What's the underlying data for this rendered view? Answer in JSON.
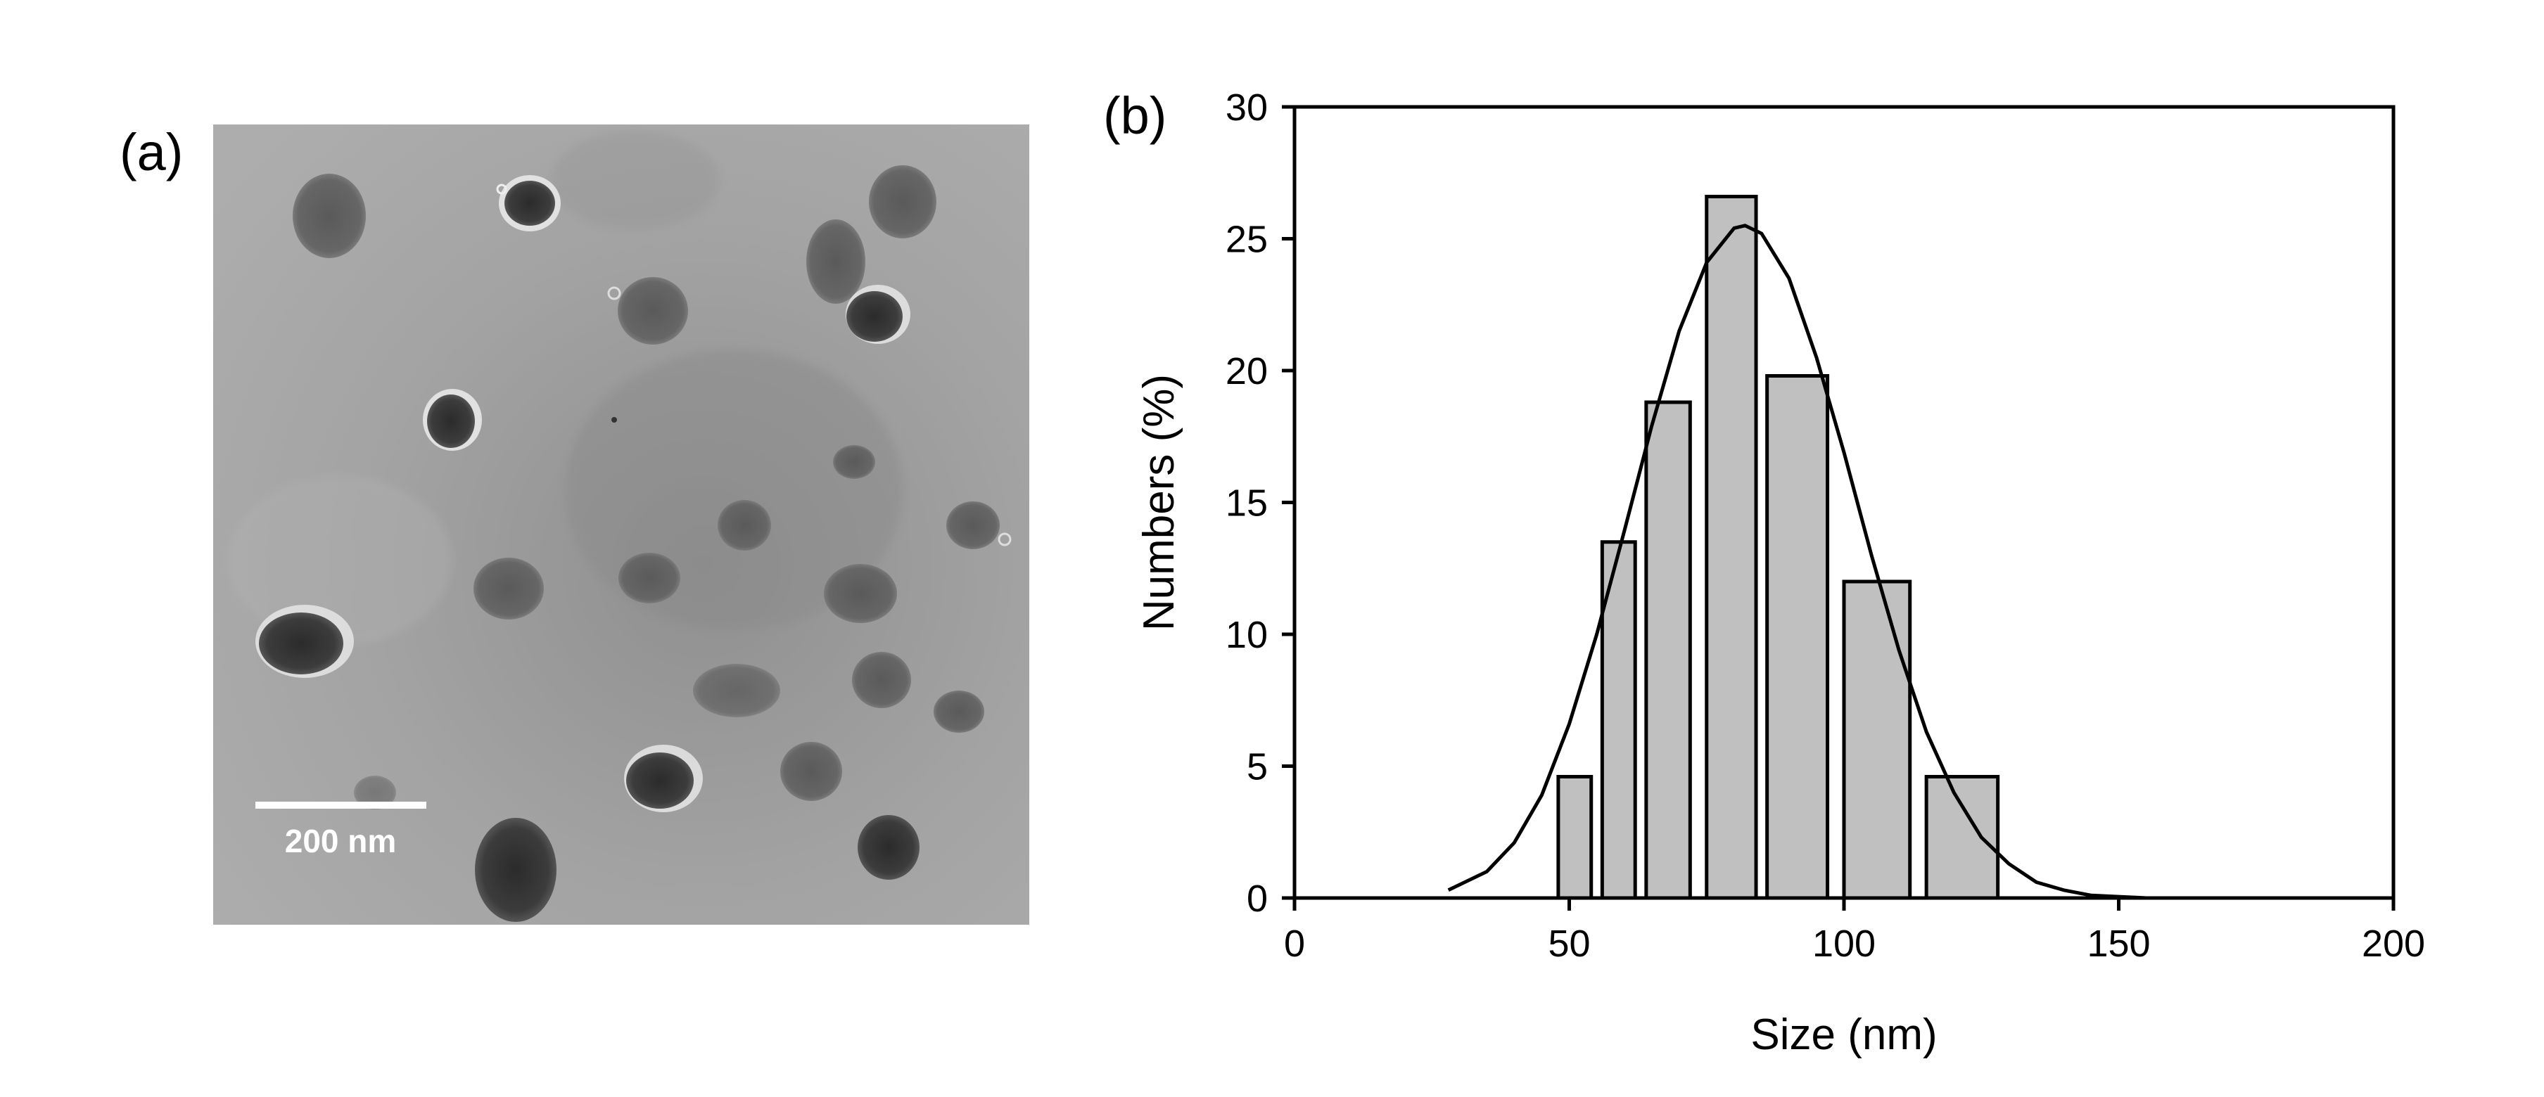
{
  "panels": {
    "a_label": "(a)",
    "b_label": "(b)"
  },
  "micrograph": {
    "scale_bar_label": "200 nm"
  },
  "chart_data": {
    "type": "bar",
    "xlabel": "Size (nm)",
    "ylabel": "Numbers (%)",
    "xlim": [
      0,
      200
    ],
    "ylim": [
      0,
      30
    ],
    "xticks": [
      0,
      50,
      100,
      150,
      200
    ],
    "yticks": [
      0,
      5,
      10,
      15,
      20,
      25,
      30
    ],
    "grid": false,
    "legend": "none",
    "bar_color": "#c0c0c0",
    "bars": [
      {
        "start": 48,
        "end": 54,
        "value": 4.6
      },
      {
        "start": 56,
        "end": 62,
        "value": 13.5
      },
      {
        "start": 64,
        "end": 72,
        "value": 18.8
      },
      {
        "start": 75,
        "end": 84,
        "value": 26.6
      },
      {
        "start": 86,
        "end": 97,
        "value": 19.8
      },
      {
        "start": 100,
        "end": 112,
        "value": 12.0
      },
      {
        "start": 115,
        "end": 128,
        "value": 4.6
      }
    ],
    "fit": {
      "type": "gaussian",
      "x": [
        28,
        35,
        40,
        45,
        50,
        55,
        60,
        65,
        70,
        75,
        80,
        82,
        85,
        90,
        95,
        100,
        105,
        110,
        115,
        120,
        125,
        130,
        135,
        140,
        145,
        150,
        155
      ],
      "y": [
        0.3,
        1.0,
        2.1,
        3.9,
        6.6,
        10.0,
        13.9,
        17.9,
        21.5,
        24.1,
        25.4,
        25.5,
        25.2,
        23.5,
        20.5,
        16.9,
        13.0,
        9.4,
        6.3,
        4.0,
        2.3,
        1.3,
        0.6,
        0.3,
        0.1,
        0.05,
        0.0
      ]
    }
  }
}
